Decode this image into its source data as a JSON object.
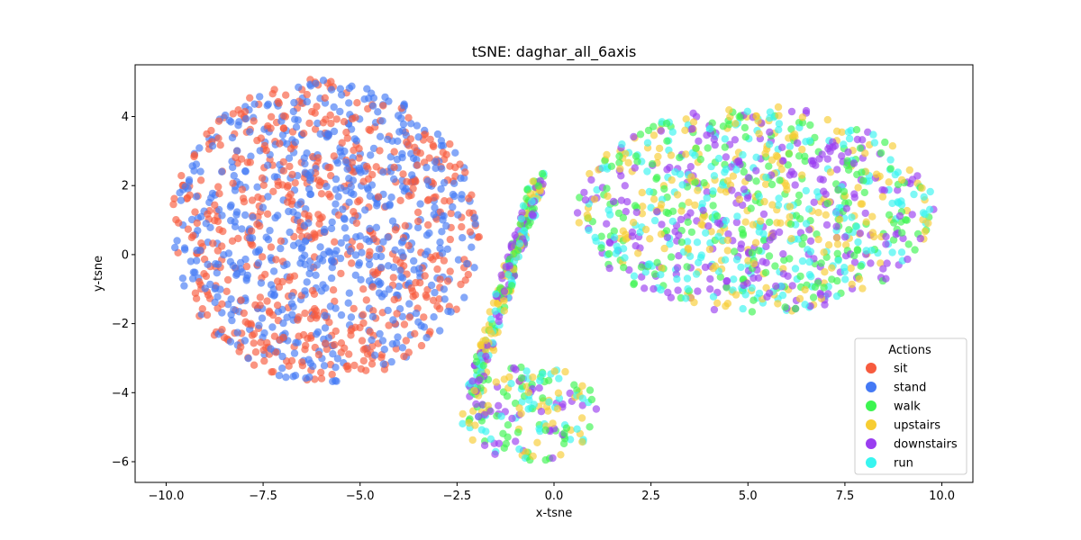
{
  "chart_data": {
    "type": "scatter",
    "title": "tSNE: daghar_all_6axis",
    "xlabel": "x-tsne",
    "ylabel": "y-tsne",
    "xlim": [
      -10.8,
      10.8
    ],
    "ylim": [
      -6.6,
      5.5
    ],
    "xticks": [
      -10.0,
      -7.5,
      -5.0,
      -2.5,
      0.0,
      2.5,
      5.0,
      7.5,
      10.0
    ],
    "xtick_labels": [
      "−10.0",
      "−7.5",
      "−5.0",
      "−2.5",
      "0.0",
      "2.5",
      "5.0",
      "7.5",
      "10.0"
    ],
    "yticks": [
      -6,
      -4,
      -2,
      0,
      2,
      4
    ],
    "ytick_labels": [
      "−6",
      "−4",
      "−2",
      "0",
      "2",
      "4"
    ],
    "grid": false,
    "legend": {
      "title": "Actions",
      "placement": "bottom-right"
    },
    "clusters": [
      {
        "name": "left-blob",
        "center": [
          -5.9,
          0.7
        ],
        "radius_x": 4.0,
        "radius_y": 4.4,
        "members": [
          "sit",
          "stand"
        ]
      },
      {
        "name": "right-lobe",
        "center": [
          5.2,
          1.3
        ],
        "radius_x": 4.6,
        "radius_y": 3.0,
        "members": [
          "walk",
          "upstairs",
          "downstairs",
          "run"
        ]
      },
      {
        "name": "bottom-lobe",
        "center": [
          -0.6,
          -4.6
        ],
        "radius_x": 1.8,
        "radius_y": 1.4,
        "members": [
          "walk",
          "upstairs",
          "downstairs",
          "run"
        ]
      }
    ],
    "series": [
      {
        "name": "sit",
        "color": "#f75b3e"
      },
      {
        "name": "stand",
        "color": "#4479f5"
      },
      {
        "name": "walk",
        "color": "#3cf550"
      },
      {
        "name": "upstairs",
        "color": "#f7cd33"
      },
      {
        "name": "downstairs",
        "color": "#9a3ef0"
      },
      {
        "name": "run",
        "color": "#38f5f0"
      }
    ]
  }
}
